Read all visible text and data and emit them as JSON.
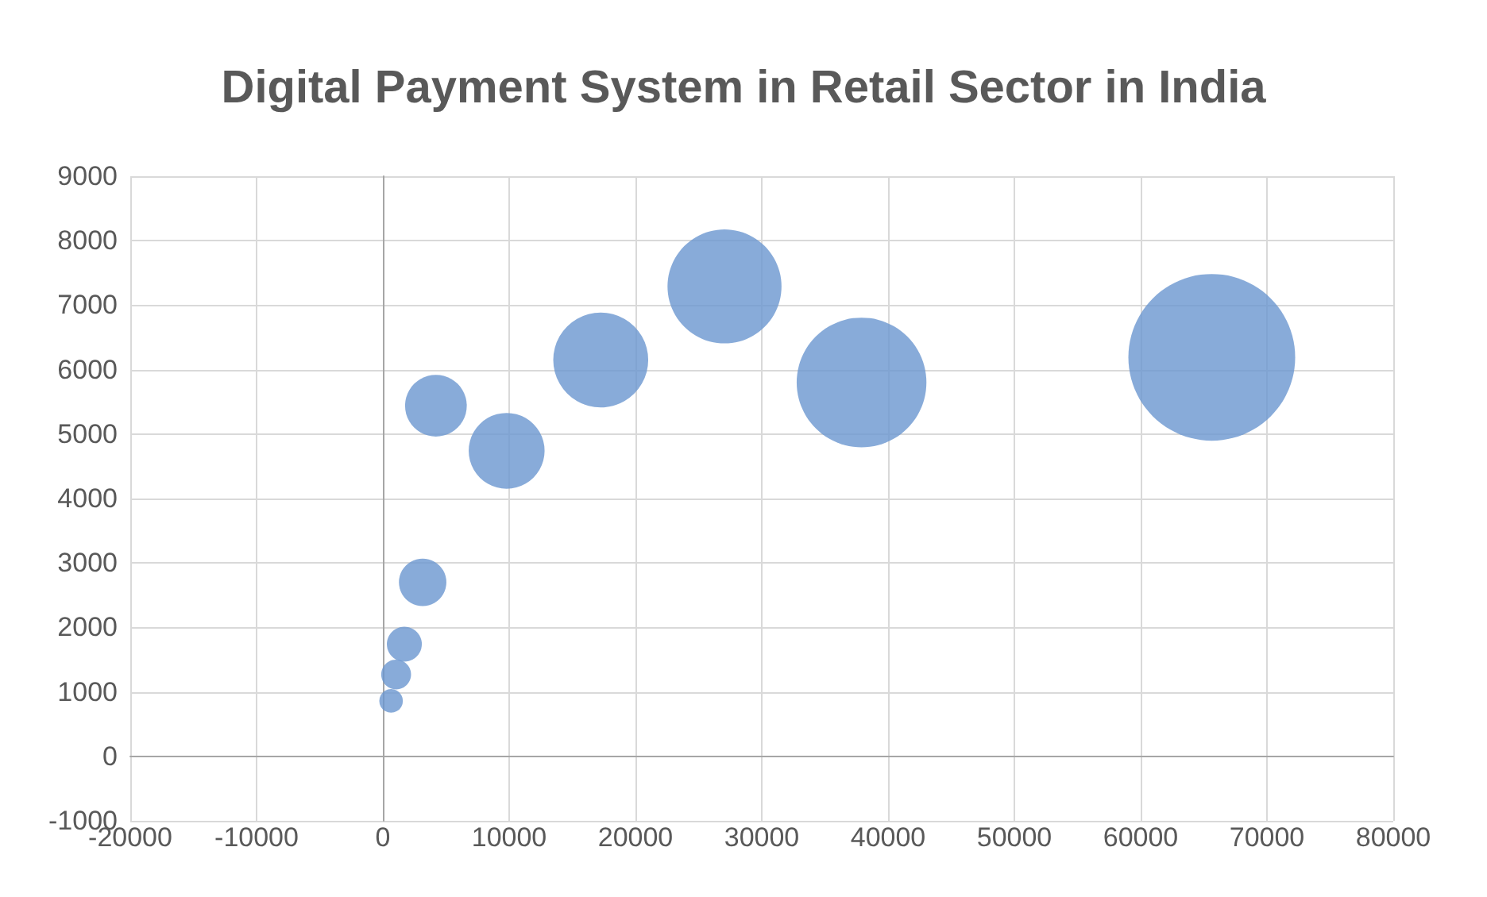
{
  "chart_data": {
    "type": "bubble",
    "title": "Digital Payment System in Retail Sector in India",
    "x": [
      650,
      1050,
      1700,
      3150,
      4200,
      9800,
      17250,
      27050,
      37900,
      65630
    ],
    "series": [
      {
        "color": "#6a96cf",
        "values": [
          860,
          1270,
          1740,
          2700,
          5440,
          4740,
          6150,
          7290,
          5800,
          6190
        ],
        "sizes": [
          0.02,
          0.032,
          0.044,
          0.081,
          0.137,
          0.207,
          0.324,
          0.467,
          0.605,
          1
        ]
      }
    ],
    "xlim": [
      -20000,
      80000
    ],
    "xticks": [
      -20000,
      -10000,
      0,
      10000,
      20000,
      30000,
      40000,
      50000,
      60000,
      70000,
      80000
    ],
    "ylim": [
      -1000,
      9000
    ],
    "yticks": [
      -1000,
      0,
      1000,
      2000,
      3000,
      4000,
      5000,
      6000,
      7000,
      8000,
      9000
    ],
    "grid": true
  }
}
